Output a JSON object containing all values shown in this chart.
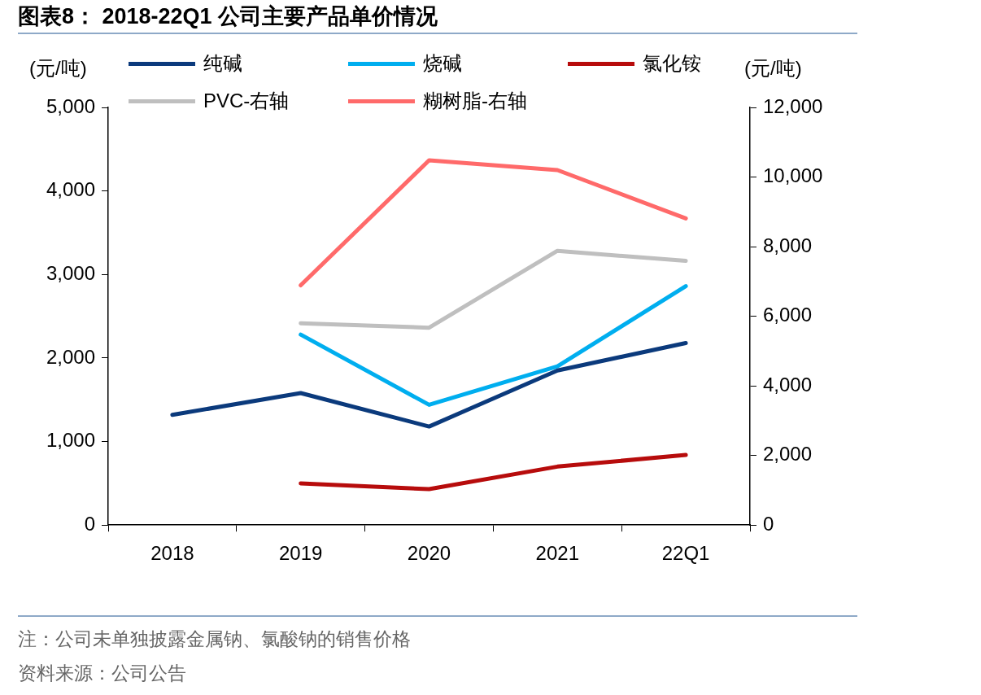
{
  "chart_data": {
    "type": "line",
    "title": "图表8：  2018-22Q1 公司主要产品单价情况",
    "ylabel": "(元/吨)",
    "y2label": "(元/吨)",
    "categories": [
      "2018",
      "2019",
      "2020",
      "2021",
      "22Q1"
    ],
    "series": [
      {
        "name": "纯碱",
        "color": "#0b3a7c",
        "values": [
          1320,
          1580,
          1180,
          1850,
          2180
        ]
      },
      {
        "name": "烧碱",
        "color": "#00aeef",
        "values": [
          null,
          2280,
          1440,
          1900,
          2860
        ]
      },
      {
        "name": "氯化铵",
        "color": "#b70c0c",
        "values": [
          null,
          500,
          430,
          700,
          840
        ]
      },
      {
        "name": "PVC-右轴",
        "color": "#bfbfbf",
        "axis": "y2",
        "values": [
          null,
          5800,
          5670,
          7880,
          7590
        ]
      },
      {
        "name": "糊树脂-右轴",
        "color": "#ff6a6a",
        "axis": "y2",
        "values": [
          null,
          6890,
          10480,
          10200,
          8810
        ]
      }
    ],
    "ylim": [
      0,
      5000
    ],
    "yticks": [
      {
        "value": 0,
        "label": "0"
      },
      {
        "value": 1000,
        "label": "1,000"
      },
      {
        "value": 2000,
        "label": "2,000"
      },
      {
        "value": 3000,
        "label": "3,000"
      },
      {
        "value": 4000,
        "label": "4,000"
      },
      {
        "value": 5000,
        "label": "5,000"
      }
    ],
    "y2lim": [
      0,
      12000
    ],
    "y2ticks": [
      {
        "value": 0,
        "label": "0"
      },
      {
        "value": 2000,
        "label": "2,000"
      },
      {
        "value": 4000,
        "label": "4,000"
      },
      {
        "value": 6000,
        "label": "6,000"
      },
      {
        "value": 8000,
        "label": "8,000"
      },
      {
        "value": 10000,
        "label": "10,000"
      },
      {
        "value": 12000,
        "label": "12,000"
      }
    ],
    "grid": false,
    "legend": "top",
    "marker": "none",
    "line_style": "solid",
    "annotations": [
      "注：公司未单独披露金属钠、氯酸钠的销售价格",
      "资料来源：公司公告"
    ]
  }
}
